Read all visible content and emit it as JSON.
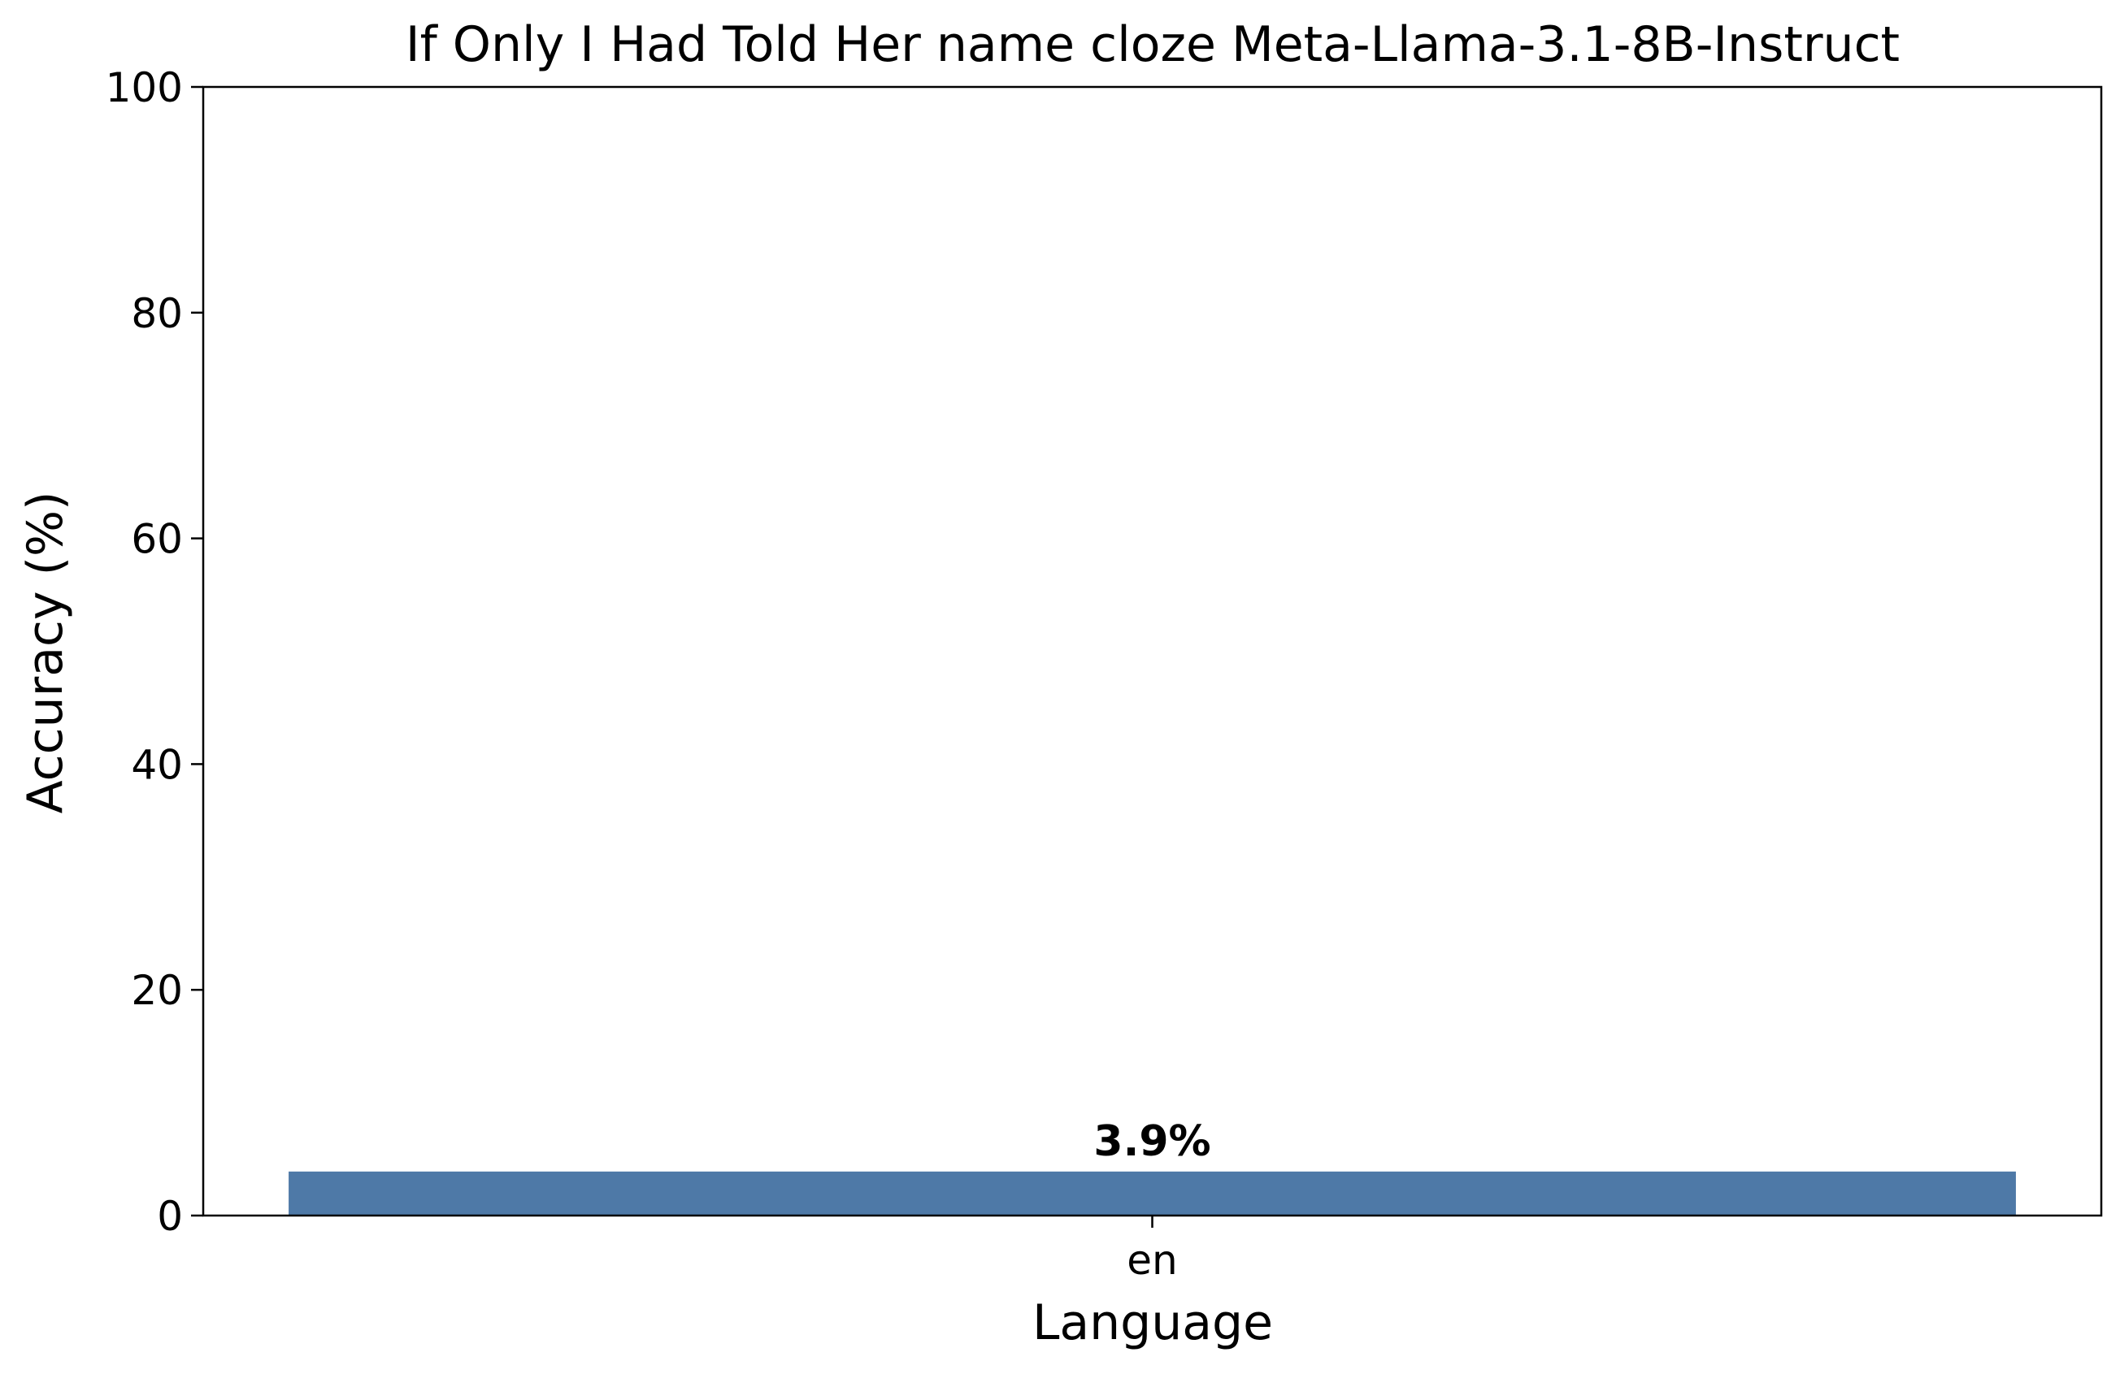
{
  "chart_data": {
    "type": "bar",
    "title": "If Only I Had Told Her name cloze Meta-Llama-3.1-8B-Instruct",
    "xlabel": "Language",
    "ylabel": "Accuracy (%)",
    "categories": [
      "en"
    ],
    "values": [
      3.9
    ],
    "data_labels": [
      "3.9%"
    ],
    "ylim": [
      0,
      100
    ],
    "yticks": [
      0,
      20,
      40,
      60,
      80,
      100
    ],
    "grid": false,
    "legend": "none",
    "bar_color": "#4e79a7"
  }
}
